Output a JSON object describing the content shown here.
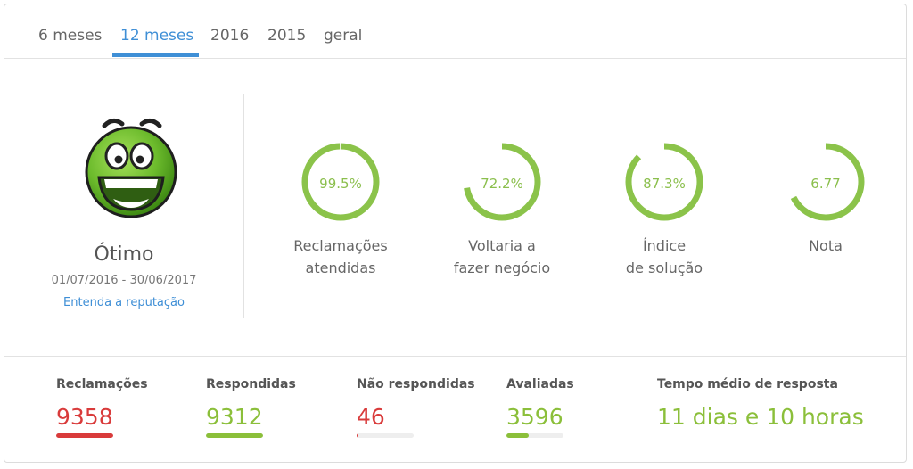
{
  "tabs": [
    {
      "label": "6 meses",
      "active": false
    },
    {
      "label": "12 meses",
      "active": true
    },
    {
      "label": "2016",
      "active": false
    },
    {
      "label": "2015",
      "active": false
    },
    {
      "label": "geral",
      "active": false
    }
  ],
  "reputation": {
    "icon": "happy-face-icon",
    "label": "Ótimo",
    "period": "01/07/2016 - 30/06/2017",
    "link": "Entenda a reputação"
  },
  "gauges": [
    {
      "value": "99.5%",
      "fraction": 0.995,
      "label_line1": "Reclamações",
      "label_line2": "atendidas"
    },
    {
      "value": "72.2%",
      "fraction": 0.722,
      "label_line1": "Voltaria a",
      "label_line2": "fazer negócio"
    },
    {
      "value": "87.3%",
      "fraction": 0.873,
      "label_line1": "Índice",
      "label_line2": "de solução"
    },
    {
      "value": "6.77",
      "fraction": 0.677,
      "label_line1": "Nota",
      "label_line2": ""
    }
  ],
  "stats": [
    {
      "label": "Reclamações",
      "value": "9358",
      "color": "#d93b3b",
      "fraction": 1.0
    },
    {
      "label": "Respondidas",
      "value": "9312",
      "color": "#8bbf3a",
      "fraction": 0.995
    },
    {
      "label": "Não respondidas",
      "value": "46",
      "color": "#d93b3b",
      "fraction": 0.005
    },
    {
      "label": "Avaliadas",
      "value": "3596",
      "color": "#8bbf3a",
      "fraction": 0.384
    }
  ],
  "response_time": {
    "label": "Tempo médio de resposta",
    "value": "11 dias e 10 horas",
    "color": "#8bbf3a"
  },
  "colors": {
    "accent": "#3f8fd6",
    "gauge": "#8bc34a"
  }
}
